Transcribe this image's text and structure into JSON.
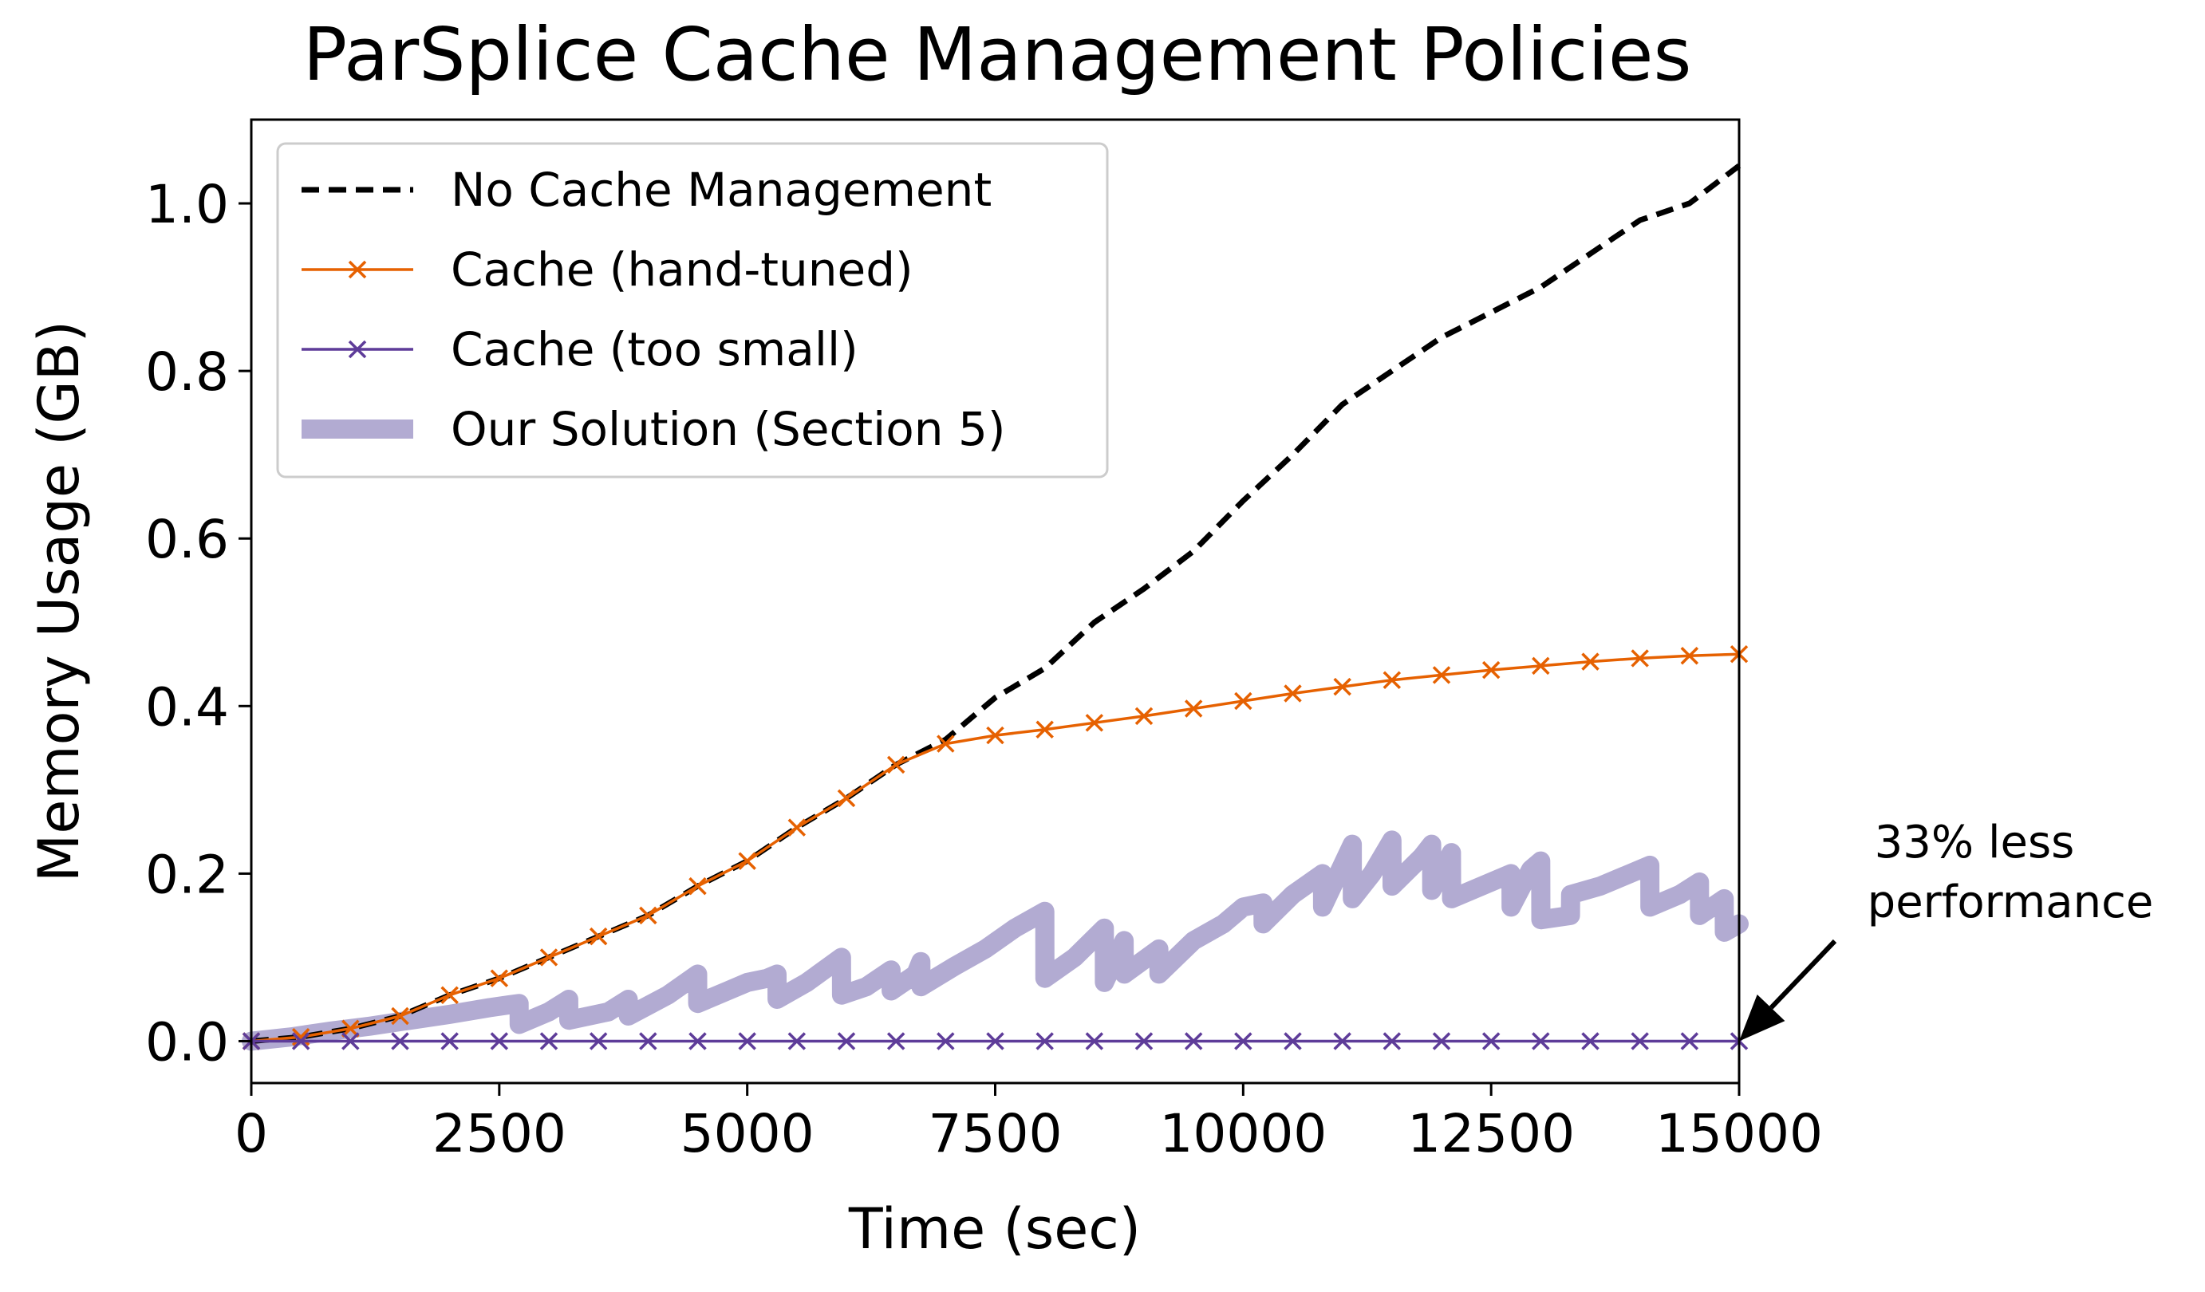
{
  "chart_data": {
    "type": "line",
    "title": "ParSplice Cache Management Policies",
    "xlabel": "Time (sec)",
    "ylabel": "Memory Usage (GB)",
    "xlim": [
      0,
      15000
    ],
    "ylim": [
      -0.05,
      1.1
    ],
    "xticks": [
      0,
      2500,
      5000,
      7500,
      10000,
      12500,
      15000
    ],
    "xtick_labels": [
      "0",
      "2500",
      "5000",
      "7500",
      "10000",
      "12500",
      "15000"
    ],
    "yticks": [
      0.0,
      0.2,
      0.4,
      0.6,
      0.8,
      1.0
    ],
    "ytick_labels": [
      "0.0",
      "0.2",
      "0.4",
      "0.6",
      "0.8",
      "1.0"
    ],
    "grid": false,
    "legend_position": "upper-left",
    "series": [
      {
        "name": "No Cache Management",
        "color": "#000000",
        "style": "dashed",
        "x": [
          0,
          500,
          1000,
          1500,
          2000,
          2500,
          3000,
          3500,
          4000,
          4500,
          5000,
          5500,
          6000,
          6500,
          7000,
          7500,
          8000,
          8500,
          9000,
          9500,
          10000,
          10500,
          11000,
          11500,
          12000,
          12500,
          13000,
          13500,
          14000,
          14500,
          15000
        ],
        "y": [
          0.0,
          0.005,
          0.015,
          0.03,
          0.055,
          0.075,
          0.1,
          0.125,
          0.15,
          0.185,
          0.215,
          0.255,
          0.29,
          0.33,
          0.36,
          0.41,
          0.445,
          0.5,
          0.54,
          0.585,
          0.645,
          0.7,
          0.76,
          0.8,
          0.84,
          0.87,
          0.9,
          0.94,
          0.98,
          1.0,
          1.045
        ]
      },
      {
        "name": "Cache (hand-tuned)",
        "color": "#e66101",
        "style": "solid",
        "marker": "x",
        "x": [
          0,
          500,
          1000,
          1500,
          2000,
          2500,
          3000,
          3500,
          4000,
          4500,
          5000,
          5500,
          6000,
          6500,
          7000,
          7500,
          8000,
          8500,
          9000,
          9500,
          10000,
          10500,
          11000,
          11500,
          12000,
          12500,
          13000,
          13500,
          14000,
          14500,
          15000
        ],
        "y": [
          0.0,
          0.005,
          0.015,
          0.03,
          0.055,
          0.075,
          0.1,
          0.125,
          0.15,
          0.185,
          0.215,
          0.255,
          0.29,
          0.33,
          0.355,
          0.365,
          0.372,
          0.38,
          0.388,
          0.397,
          0.406,
          0.415,
          0.423,
          0.431,
          0.437,
          0.443,
          0.448,
          0.453,
          0.457,
          0.46,
          0.462
        ]
      },
      {
        "name": "Cache (too small)",
        "color": "#5e3c99",
        "style": "solid",
        "marker": "x",
        "x": [
          0,
          500,
          1000,
          1500,
          2000,
          2500,
          3000,
          3500,
          4000,
          4500,
          5000,
          5500,
          6000,
          6500,
          7000,
          7500,
          8000,
          8500,
          9000,
          9500,
          10000,
          10500,
          11000,
          11500,
          12000,
          12500,
          13000,
          13500,
          14000,
          14500,
          15000
        ],
        "y": [
          0,
          0,
          0,
          0,
          0,
          0,
          0,
          0,
          0,
          0,
          0,
          0,
          0,
          0,
          0,
          0,
          0,
          0,
          0,
          0,
          0,
          0,
          0,
          0,
          0,
          0,
          0,
          0,
          0,
          0,
          0
        ]
      },
      {
        "name": "Our Solution (Section 5)",
        "color": "#b2abd2",
        "style": "thick",
        "x": [
          0,
          400,
          800,
          1200,
          1600,
          2000,
          2400,
          2700,
          2701,
          3000,
          3200,
          3201,
          3600,
          3800,
          3801,
          4200,
          4500,
          4501,
          4800,
          5000,
          5200,
          5300,
          5301,
          5600,
          5950,
          5951,
          6200,
          6450,
          6451,
          6700,
          6750,
          6751,
          7100,
          7400,
          7700,
          8000,
          8001,
          8300,
          8600,
          8601,
          8800,
          8801,
          9150,
          9151,
          9500,
          9800,
          10000,
          10200,
          10201,
          10500,
          10800,
          10801,
          11000,
          11100,
          11101,
          11300,
          11500,
          11501,
          11800,
          11900,
          11901,
          12100,
          12101,
          12500,
          12700,
          12701,
          12900,
          13000,
          13001,
          13300,
          13301,
          13600,
          13900,
          14100,
          14101,
          14400,
          14600,
          14601,
          14850,
          14851,
          15000
        ],
        "y": [
          0.0,
          0.005,
          0.012,
          0.018,
          0.025,
          0.032,
          0.04,
          0.045,
          0.02,
          0.035,
          0.05,
          0.025,
          0.035,
          0.05,
          0.03,
          0.055,
          0.08,
          0.045,
          0.06,
          0.07,
          0.075,
          0.08,
          0.05,
          0.07,
          0.1,
          0.055,
          0.065,
          0.085,
          0.06,
          0.08,
          0.095,
          0.065,
          0.09,
          0.11,
          0.135,
          0.155,
          0.075,
          0.1,
          0.135,
          0.07,
          0.12,
          0.08,
          0.11,
          0.08,
          0.12,
          0.14,
          0.16,
          0.165,
          0.14,
          0.175,
          0.2,
          0.16,
          0.21,
          0.235,
          0.17,
          0.2,
          0.24,
          0.185,
          0.22,
          0.235,
          0.18,
          0.225,
          0.17,
          0.19,
          0.2,
          0.16,
          0.205,
          0.215,
          0.145,
          0.15,
          0.175,
          0.185,
          0.2,
          0.21,
          0.16,
          0.175,
          0.19,
          0.15,
          0.17,
          0.13,
          0.14
        ]
      }
    ],
    "annotation": {
      "line1": "33% less",
      "line2": "performance",
      "arrow_target": [
        15000,
        0.0
      ]
    }
  }
}
